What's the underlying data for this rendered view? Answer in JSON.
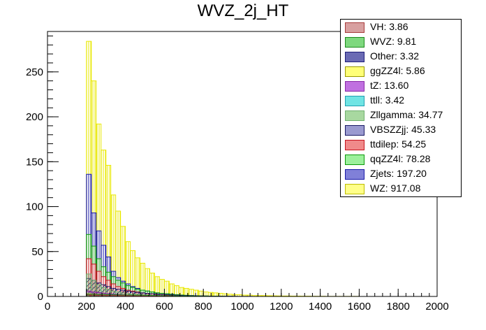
{
  "chart_data": {
    "type": "bar",
    "title": "WVZ_2j_HT",
    "xlabel": "",
    "ylabel": "",
    "xlim": [
      0,
      2000
    ],
    "ylim": [
      0,
      295
    ],
    "x_ticks": [
      "0",
      "200",
      "400",
      "600",
      "800",
      "1000",
      "1200",
      "1400",
      "1600",
      "1800",
      "2000"
    ],
    "y_ticks": [
      "0",
      "50",
      "100",
      "150",
      "200",
      "250"
    ],
    "bin_edges_start": 200,
    "bin_width": 25,
    "stacked": false,
    "legend_position": "top-right",
    "series": [
      {
        "name": "WZ: 917.08",
        "color": "#e8e800",
        "pattern": "vline",
        "values": [
          284,
          240,
          192,
          163,
          146,
          113,
          95,
          78,
          61,
          51,
          43,
          37,
          31,
          26,
          22,
          19,
          17,
          14,
          12,
          10,
          9,
          8,
          7,
          6,
          5,
          4.5,
          4,
          3.5,
          3,
          2.5,
          2,
          2,
          1.5,
          1.5,
          1,
          1,
          1,
          0.8,
          0.7,
          0.6,
          0.5,
          0.5,
          0.4,
          0.4,
          0.3,
          0.3,
          0.2,
          0.2,
          0.2,
          0.1,
          0.1,
          0.1,
          0.1,
          0.1,
          0.1,
          0.1
        ]
      },
      {
        "name": "Zjets: 197.20",
        "color": "#1a1aa8",
        "pattern": "vline",
        "values": [
          136,
          93,
          73,
          57,
          44,
          28,
          21,
          17,
          14,
          11,
          9,
          7,
          6,
          5,
          4,
          3.5,
          3,
          2.5,
          2,
          1.5,
          1.2,
          1,
          0.8,
          0.6,
          0.5,
          0.4,
          0.3,
          0.3,
          0.2,
          0.2,
          0.1,
          0.1,
          0.1,
          0.1
        ]
      },
      {
        "name": "qqZZ4l: 78.28",
        "color": "#0b9a0b",
        "pattern": "vline",
        "values": [
          69,
          56,
          42,
          33,
          27,
          22,
          18,
          15,
          12,
          10,
          8,
          7,
          6,
          5,
          4,
          3.5,
          3,
          2.5,
          2,
          1.6,
          1.3,
          1,
          0.8,
          0.6,
          0.5,
          0.4,
          0.3,
          0.2,
          0.2,
          0.1
        ]
      },
      {
        "name": "ttdilep: 54.25",
        "color": "#c8141e",
        "pattern": "vline",
        "values": [
          42,
          36,
          28,
          22,
          18,
          14,
          11,
          9,
          7,
          6,
          5,
          4,
          3.4,
          2.8,
          2.3,
          1.9,
          1.5,
          1.2,
          1,
          0.8,
          0.6,
          0.5,
          0.4,
          0.3,
          0.2,
          0.2,
          0.1
        ]
      },
      {
        "name": "VBSZZjj: 45.33",
        "color": "#1a1a66",
        "pattern": "diag",
        "values": [
          20,
          18,
          15,
          13,
          11,
          9,
          8,
          7,
          6,
          5,
          4.5,
          4,
          3.5,
          3,
          2.6,
          2.3,
          2,
          1.7,
          1.4,
          1.2,
          1,
          0.8,
          0.7,
          0.6,
          0.5,
          0.4,
          0.3,
          0.3,
          0.2,
          0.2,
          0.1
        ]
      },
      {
        "name": "Zllgamma: 34.77",
        "color": "#70b070",
        "pattern": "fill",
        "values": [
          25,
          18,
          13,
          10,
          8,
          6,
          5,
          4,
          3.3,
          2.7,
          2.2,
          1.8,
          1.5,
          1.2,
          1,
          0.8,
          0.6,
          0.5,
          0.4,
          0.3,
          0.2,
          0.2,
          0.1
        ]
      },
      {
        "name": "ttll: 3.42",
        "color": "#20a0b0",
        "pattern": "fill",
        "values": [
          1.2,
          1.1,
          1,
          0.9,
          0.8,
          0.7,
          0.6,
          0.5,
          0.4,
          0.4,
          0.3,
          0.3,
          0.2,
          0.2,
          0.2,
          0.1,
          0.1,
          0.1
        ]
      },
      {
        "name": "tZ: 13.60",
        "color": "#8a2aa8",
        "pattern": "fill",
        "values": [
          6,
          5,
          4.3,
          3.7,
          3.1,
          2.6,
          2.2,
          1.9,
          1.6,
          1.3,
          1.1,
          0.9,
          0.7,
          0.6,
          0.5,
          0.4,
          0.3,
          0.3,
          0.2,
          0.2,
          0.1
        ]
      },
      {
        "name": "ggZZ4l: 5.86",
        "color": "#e0e040",
        "pattern": "fill",
        "values": [
          3,
          2.6,
          2.3,
          2,
          1.7,
          1.5,
          1.3,
          1.1,
          0.9,
          0.8,
          0.7,
          0.6,
          0.5,
          0.4,
          0.3,
          0.3,
          0.2,
          0.2,
          0.1
        ]
      },
      {
        "name": "Other: 3.32",
        "color": "#1e1e7a",
        "pattern": "cross",
        "values": [
          1.8,
          1.6,
          1.4,
          1.2,
          1.1,
          1,
          0.9,
          0.8,
          0.7,
          0.6,
          0.5,
          0.4,
          0.3,
          0.3,
          0.2,
          0.2,
          0.1
        ]
      },
      {
        "name": "WVZ: 9.81",
        "color": "#1c8a1c",
        "pattern": "fill",
        "values": [
          2.5,
          2.4,
          2.3,
          2.2,
          2,
          1.9,
          1.8,
          1.7,
          1.6,
          1.5,
          1.4,
          1.3,
          1.2,
          1.1,
          1,
          0.9,
          0.8,
          0.7,
          0.6,
          0.5,
          0.5,
          0.4,
          0.4,
          0.3,
          0.3,
          0.2,
          0.2,
          0.1
        ]
      },
      {
        "name": "VH: 3.86",
        "color": "#a83c3c",
        "pattern": "cross",
        "values": [
          1.6,
          1.5,
          1.4,
          1.3,
          1.2,
          1.1,
          1,
          0.9,
          0.8,
          0.7,
          0.6,
          0.5,
          0.4,
          0.3,
          0.3,
          0.2,
          0.2,
          0.1
        ]
      }
    ],
    "legend_order": [
      "VH: 3.86",
      "WVZ: 9.81",
      "Other: 3.32",
      "ggZZ4l: 5.86",
      "tZ: 13.60",
      "ttll: 3.42",
      "Zllgamma: 34.77",
      "VBSZZjj: 45.33",
      "ttdilep: 54.25",
      "qqZZ4l: 78.28",
      "Zjets: 197.20",
      "WZ: 917.08"
    ],
    "legend_swatches": [
      {
        "name": "VH: 3.86",
        "fill": "#d8a0a0",
        "border": "#a83c3c"
      },
      {
        "name": "WVZ: 9.81",
        "fill": "#7ed87e",
        "border": "#1c8a1c"
      },
      {
        "name": "Other: 3.32",
        "fill": "#6a6ab4",
        "border": "#1e1e7a"
      },
      {
        "name": "ggZZ4l: 5.86",
        "fill": "#ffff77",
        "border": "#999900"
      },
      {
        "name": "tZ: 13.60",
        "fill": "#c070e0",
        "border": "#8a2aa8"
      },
      {
        "name": "ttll: 3.42",
        "fill": "#70e4e4",
        "border": "#20a0b0"
      },
      {
        "name": "Zllgamma: 34.77",
        "fill": "#a8d8a0",
        "border": "#70b070"
      },
      {
        "name": "VBSZZjj: 45.33",
        "fill": "#9a9ad0",
        "border": "#1a1a66"
      },
      {
        "name": "ttdilep: 54.25",
        "fill": "#f08a8a",
        "border": "#c8141e"
      },
      {
        "name": "qqZZ4l: 78.28",
        "fill": "#9cf09c",
        "border": "#0b9a0b"
      },
      {
        "name": "Zjets: 197.20",
        "fill": "#8080d8",
        "border": "#1a1aa8"
      },
      {
        "name": "WZ: 917.08",
        "fill": "#ffff88",
        "border": "#bdbd00"
      }
    ]
  }
}
